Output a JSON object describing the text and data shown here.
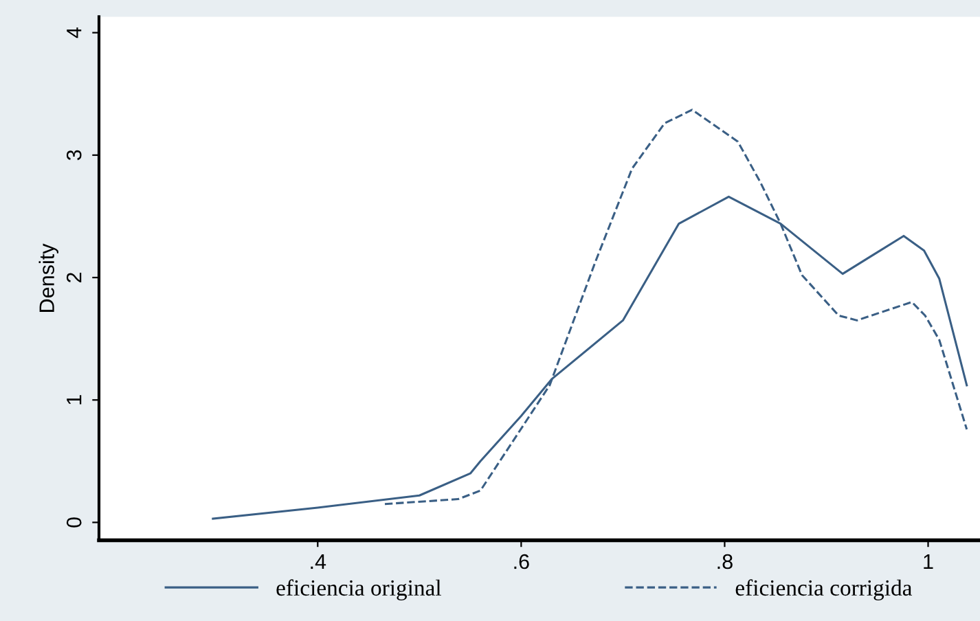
{
  "chart_data": {
    "type": "line",
    "ylabel": "Density",
    "xlim": [
      0.185,
      1.051
    ],
    "ylim": [
      -0.146,
      4.13
    ],
    "xticks": [
      {
        "value": 0.4,
        "label": ".4"
      },
      {
        "value": 0.6,
        "label": ".6"
      },
      {
        "value": 0.8,
        "label": ".8"
      },
      {
        "value": 1,
        "label": "1"
      }
    ],
    "yticks": [
      0,
      1,
      2,
      3,
      4
    ],
    "grid": false,
    "legend": "bottom",
    "marker": "none",
    "series": [
      {
        "name": "eficiencia original",
        "color": "#3a5f85",
        "line_style": "solid",
        "x": [
          0.297,
          0.4,
          0.5,
          0.55,
          0.56,
          0.6,
          0.63,
          0.7,
          0.755,
          0.804,
          0.855,
          0.916,
          0.976,
          0.996,
          1.011,
          1.038
        ],
        "values": [
          0.03,
          0.12,
          0.22,
          0.4,
          0.5,
          0.87,
          1.17,
          1.65,
          2.44,
          2.66,
          2.44,
          2.03,
          2.34,
          2.22,
          1.99,
          1.12
        ]
      },
      {
        "name": "eficiencia corrigida",
        "color": "#3a5f85",
        "line_style": "dashed",
        "x": [
          0.466,
          0.538,
          0.56,
          0.628,
          0.673,
          0.709,
          0.741,
          0.768,
          0.813,
          0.835,
          0.855,
          0.876,
          0.912,
          0.93,
          0.984,
          0.997,
          1.011,
          1.038
        ],
        "values": [
          0.15,
          0.19,
          0.26,
          1.12,
          2.13,
          2.89,
          3.26,
          3.37,
          3.11,
          2.78,
          2.44,
          2.02,
          1.69,
          1.65,
          1.8,
          1.69,
          1.49,
          0.76
        ]
      }
    ]
  }
}
